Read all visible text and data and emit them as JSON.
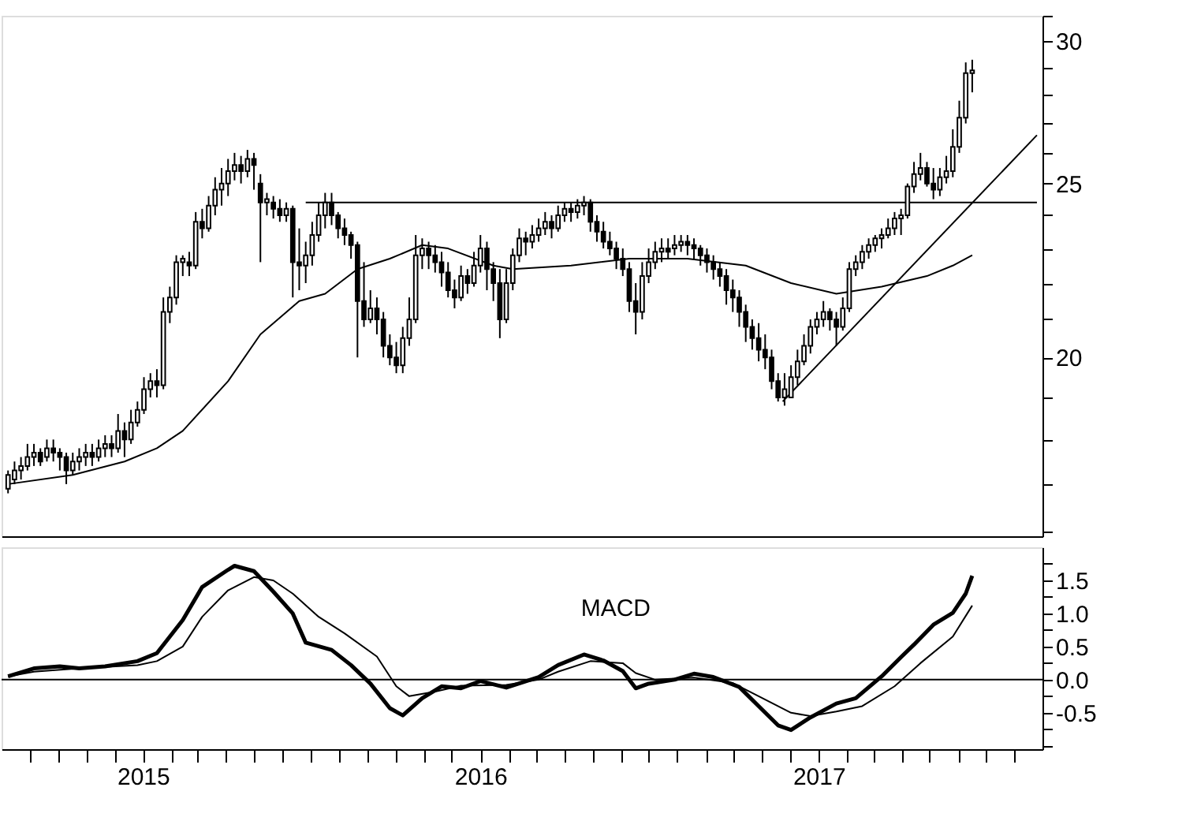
{
  "chart_data": [
    {
      "type": "candlestick",
      "log": "y",
      "tick_labels": "y",
      "xlim": [
        "2014-08-01",
        "2017-08-31"
      ],
      "ylim": [
        15.9,
        31.0
      ],
      "yticks": [
        {
          "value": 16,
          "label": null
        },
        {
          "value": 17,
          "label": null
        },
        {
          "value": 18,
          "label": null
        },
        {
          "value": 19,
          "label": null
        },
        20,
        {
          "value": 21,
          "label": null
        },
        {
          "value": 22,
          "label": null
        },
        {
          "value": 23,
          "label": null
        },
        {
          "value": 24,
          "label": null
        },
        25,
        {
          "value": 26,
          "label": null
        },
        {
          "value": 27,
          "label": null
        },
        {
          "value": 28,
          "label": null
        },
        {
          "value": 29,
          "label": null
        },
        30,
        {
          "value": 31,
          "label": null
        }
      ],
      "color": "#000000",
      "x": [
        "2014-08-08",
        "2014-08-15",
        "2014-08-22",
        "2014-08-29",
        "2014-09-05",
        "2014-09-12",
        "2014-09-19",
        "2014-09-26",
        "2014-10-03",
        "2014-10-10",
        "2014-10-17",
        "2014-10-24",
        "2014-10-31",
        "2014-11-07",
        "2014-11-14",
        "2014-11-21",
        "2014-11-28",
        "2014-12-05",
        "2014-12-12",
        "2014-12-19",
        "2014-12-26",
        "2015-01-02",
        "2015-01-09",
        "2015-01-16",
        "2015-01-23",
        "2015-01-30",
        "2015-02-06",
        "2015-02-13",
        "2015-02-20",
        "2015-02-27",
        "2015-03-06",
        "2015-03-13",
        "2015-03-20",
        "2015-03-27",
        "2015-04-03",
        "2015-04-10",
        "2015-04-17",
        "2015-04-24",
        "2015-05-01",
        "2015-05-08",
        "2015-05-15",
        "2015-05-22",
        "2015-05-29",
        "2015-06-05",
        "2015-06-12",
        "2015-06-19",
        "2015-06-26",
        "2015-07-03",
        "2015-07-10",
        "2015-07-17",
        "2015-07-24",
        "2015-07-31",
        "2015-08-07",
        "2015-08-14",
        "2015-08-21",
        "2015-08-28",
        "2015-09-04",
        "2015-09-11",
        "2015-09-18",
        "2015-09-25",
        "2015-10-02",
        "2015-10-09",
        "2015-10-16",
        "2015-10-23",
        "2015-10-30",
        "2015-11-06",
        "2015-11-13",
        "2015-11-20",
        "2015-11-27",
        "2015-12-04",
        "2015-12-11",
        "2015-12-18",
        "2015-12-25",
        "2016-01-01",
        "2016-01-08",
        "2016-01-15",
        "2016-01-22",
        "2016-01-29",
        "2016-02-05",
        "2016-02-12",
        "2016-02-19",
        "2016-02-26",
        "2016-03-04",
        "2016-03-11",
        "2016-03-18",
        "2016-03-25",
        "2016-04-01",
        "2016-04-08",
        "2016-04-15",
        "2016-04-22",
        "2016-04-29",
        "2016-05-06",
        "2016-05-13",
        "2016-05-20",
        "2016-05-27",
        "2016-06-03",
        "2016-06-10",
        "2016-06-17",
        "2016-06-24",
        "2016-07-01",
        "2016-07-08",
        "2016-07-15",
        "2016-07-22",
        "2016-07-29",
        "2016-08-05",
        "2016-08-12",
        "2016-08-19",
        "2016-08-26",
        "2016-09-02",
        "2016-09-09",
        "2016-09-16",
        "2016-09-23",
        "2016-09-30",
        "2016-10-07",
        "2016-10-14",
        "2016-10-21",
        "2016-10-28",
        "2016-11-04",
        "2016-11-11",
        "2016-11-18",
        "2016-11-25",
        "2016-12-02",
        "2016-12-09",
        "2016-12-16",
        "2016-12-23",
        "2016-12-30",
        "2017-01-06",
        "2017-01-13",
        "2017-01-20",
        "2017-01-27",
        "2017-02-03",
        "2017-02-10",
        "2017-02-17",
        "2017-02-24",
        "2017-03-03",
        "2017-03-10",
        "2017-03-17",
        "2017-03-24",
        "2017-03-31",
        "2017-04-07",
        "2017-04-14",
        "2017-04-21",
        "2017-04-28",
        "2017-05-05",
        "2017-05-12",
        "2017-05-19",
        "2017-05-26",
        "2017-06-02",
        "2017-06-09",
        "2017-06-16"
      ],
      "ohlc": [
        [
          16.9,
          17.3,
          16.8,
          17.2
        ],
        [
          17.1,
          17.5,
          17.0,
          17.3
        ],
        [
          17.3,
          17.6,
          17.1,
          17.4
        ],
        [
          17.4,
          17.9,
          17.3,
          17.6
        ],
        [
          17.6,
          17.9,
          17.4,
          17.7
        ],
        [
          17.7,
          17.8,
          17.4,
          17.5
        ],
        [
          17.6,
          18.0,
          17.5,
          17.8
        ],
        [
          17.8,
          18.0,
          17.5,
          17.7
        ],
        [
          17.7,
          17.8,
          17.3,
          17.6
        ],
        [
          17.6,
          17.7,
          17.0,
          17.3
        ],
        [
          17.3,
          17.7,
          17.2,
          17.5
        ],
        [
          17.5,
          17.8,
          17.3,
          17.6
        ],
        [
          17.6,
          17.9,
          17.4,
          17.7
        ],
        [
          17.7,
          17.9,
          17.4,
          17.6
        ],
        [
          17.6,
          18.0,
          17.5,
          17.8
        ],
        [
          17.8,
          18.1,
          17.6,
          17.9
        ],
        [
          17.9,
          18.1,
          17.6,
          17.8
        ],
        [
          17.8,
          18.6,
          17.7,
          18.2
        ],
        [
          18.2,
          18.4,
          17.6,
          18.0
        ],
        [
          18.0,
          18.7,
          17.9,
          18.4
        ],
        [
          18.4,
          18.9,
          18.3,
          18.7
        ],
        [
          18.7,
          19.5,
          18.6,
          19.2
        ],
        [
          19.2,
          19.6,
          19.0,
          19.4
        ],
        [
          19.4,
          19.7,
          19.0,
          19.3
        ],
        [
          19.3,
          21.6,
          19.2,
          21.2
        ],
        [
          21.2,
          21.9,
          20.9,
          21.6
        ],
        [
          21.6,
          22.8,
          21.4,
          22.6
        ],
        [
          22.6,
          22.8,
          22.2,
          22.7
        ],
        [
          22.6,
          22.9,
          22.2,
          22.5
        ],
        [
          22.5,
          24.1,
          22.4,
          23.8
        ],
        [
          23.8,
          24.2,
          23.3,
          23.6
        ],
        [
          23.6,
          24.6,
          23.5,
          24.3
        ],
        [
          24.3,
          25.2,
          24.0,
          24.8
        ],
        [
          24.8,
          25.5,
          24.3,
          25.0
        ],
        [
          25.0,
          25.8,
          24.6,
          25.4
        ],
        [
          25.4,
          26.0,
          25.1,
          25.6
        ],
        [
          25.6,
          25.9,
          25.0,
          25.4
        ],
        [
          25.4,
          26.1,
          25.2,
          25.8
        ],
        [
          25.8,
          26.0,
          24.8,
          25.6
        ],
        [
          25.0,
          25.3,
          22.6,
          24.4
        ],
        [
          24.4,
          24.7,
          24.0,
          24.5
        ],
        [
          24.4,
          24.6,
          23.9,
          24.2
        ],
        [
          24.2,
          24.5,
          23.8,
          24.0
        ],
        [
          24.0,
          24.4,
          23.8,
          24.2
        ],
        [
          24.2,
          24.3,
          21.6,
          22.6
        ],
        [
          22.6,
          23.6,
          21.8,
          22.5
        ],
        [
          22.5,
          23.2,
          22.0,
          22.8
        ],
        [
          22.8,
          23.8,
          22.5,
          23.4
        ],
        [
          23.4,
          24.4,
          23.2,
          24.0
        ],
        [
          24.0,
          24.7,
          23.6,
          24.4
        ],
        [
          24.4,
          24.7,
          23.7,
          24.0
        ],
        [
          24.0,
          24.1,
          23.3,
          23.6
        ],
        [
          23.6,
          23.9,
          23.1,
          23.4
        ],
        [
          23.4,
          23.5,
          22.7,
          23.1
        ],
        [
          23.1,
          23.2,
          20.0,
          21.5
        ],
        [
          21.5,
          22.6,
          20.8,
          21.0
        ],
        [
          21.0,
          21.8,
          20.9,
          21.3
        ],
        [
          21.3,
          21.6,
          20.6,
          21.0
        ],
        [
          21.0,
          21.2,
          20.0,
          20.3
        ],
        [
          20.3,
          20.6,
          19.8,
          20.0
        ],
        [
          20.0,
          20.4,
          19.6,
          19.8
        ],
        [
          19.8,
          20.8,
          19.6,
          20.5
        ],
        [
          20.5,
          21.6,
          20.3,
          21.0
        ],
        [
          21.0,
          23.4,
          20.9,
          22.8
        ],
        [
          22.8,
          23.3,
          22.4,
          23.0
        ],
        [
          23.0,
          23.2,
          22.4,
          22.8
        ],
        [
          22.8,
          23.1,
          22.3,
          22.6
        ],
        [
          22.6,
          22.9,
          21.9,
          22.3
        ],
        [
          22.3,
          22.6,
          21.6,
          21.8
        ],
        [
          21.8,
          22.1,
          21.3,
          21.6
        ],
        [
          21.6,
          22.5,
          21.5,
          22.2
        ],
        [
          22.2,
          22.4,
          21.7,
          22.0
        ],
        [
          22.0,
          22.9,
          21.9,
          22.5
        ],
        [
          22.5,
          23.4,
          22.3,
          23.0
        ],
        [
          23.0,
          23.2,
          21.8,
          22.4
        ],
        [
          22.4,
          22.6,
          21.5,
          22.0
        ],
        [
          22.0,
          22.4,
          20.5,
          21.0
        ],
        [
          21.0,
          22.4,
          20.9,
          22.0
        ],
        [
          22.0,
          23.0,
          21.8,
          22.8
        ],
        [
          22.8,
          23.6,
          22.6,
          23.3
        ],
        [
          23.3,
          23.5,
          22.8,
          23.2
        ],
        [
          23.2,
          23.7,
          23.0,
          23.4
        ],
        [
          23.4,
          23.9,
          23.2,
          23.6
        ],
        [
          23.6,
          24.1,
          23.4,
          23.8
        ],
        [
          23.8,
          24.0,
          23.3,
          23.6
        ],
        [
          23.6,
          24.3,
          23.5,
          24.0
        ],
        [
          24.0,
          24.4,
          23.8,
          24.2
        ],
        [
          24.2,
          24.4,
          23.8,
          24.1
        ],
        [
          24.1,
          24.5,
          23.9,
          24.3
        ],
        [
          24.3,
          24.6,
          24.0,
          24.4
        ],
        [
          24.4,
          24.5,
          23.5,
          23.8
        ],
        [
          23.8,
          24.0,
          23.2,
          23.5
        ],
        [
          23.5,
          23.8,
          23.0,
          23.2
        ],
        [
          23.2,
          23.5,
          22.8,
          23.0
        ],
        [
          23.0,
          23.2,
          22.4,
          22.7
        ],
        [
          22.7,
          23.0,
          22.2,
          22.4
        ],
        [
          22.4,
          22.6,
          21.2,
          21.5
        ],
        [
          21.5,
          22.0,
          20.6,
          21.2
        ],
        [
          21.2,
          22.6,
          21.0,
          22.2
        ],
        [
          22.2,
          23.0,
          22.0,
          22.6
        ],
        [
          22.6,
          23.2,
          22.4,
          22.9
        ],
        [
          22.9,
          23.3,
          22.6,
          23.0
        ],
        [
          23.0,
          23.3,
          22.7,
          22.9
        ],
        [
          23.0,
          23.4,
          22.8,
          23.1
        ],
        [
          23.1,
          23.4,
          22.9,
          23.2
        ],
        [
          23.2,
          23.4,
          22.8,
          23.1
        ],
        [
          23.1,
          23.3,
          22.7,
          23.0
        ],
        [
          23.0,
          23.1,
          22.5,
          22.8
        ],
        [
          22.8,
          23.0,
          22.3,
          22.6
        ],
        [
          22.6,
          22.8,
          22.1,
          22.4
        ],
        [
          22.4,
          22.6,
          21.9,
          22.2
        ],
        [
          22.2,
          22.4,
          21.4,
          21.8
        ],
        [
          21.8,
          22.1,
          21.2,
          21.6
        ],
        [
          21.6,
          21.8,
          20.8,
          21.2
        ],
        [
          21.2,
          21.4,
          20.4,
          20.8
        ],
        [
          20.8,
          21.0,
          20.2,
          20.5
        ],
        [
          20.5,
          20.9,
          19.9,
          20.2
        ],
        [
          20.2,
          20.6,
          19.7,
          20.0
        ],
        [
          20.0,
          20.2,
          19.2,
          19.4
        ],
        [
          19.4,
          19.6,
          18.9,
          19.0
        ],
        [
          19.0,
          19.6,
          18.8,
          19.2
        ],
        [
          19.0,
          19.8,
          19.0,
          19.5
        ],
        [
          19.5,
          20.2,
          19.3,
          19.9
        ],
        [
          19.9,
          20.6,
          19.8,
          20.3
        ],
        [
          20.3,
          21.0,
          20.1,
          20.8
        ],
        [
          20.8,
          21.2,
          20.6,
          21.0
        ],
        [
          21.0,
          21.5,
          20.8,
          21.2
        ],
        [
          21.2,
          21.3,
          20.7,
          21.0
        ],
        [
          21.0,
          21.2,
          20.3,
          20.8
        ],
        [
          20.8,
          21.6,
          20.7,
          21.3
        ],
        [
          21.3,
          22.6,
          21.2,
          22.4
        ],
        [
          22.4,
          22.8,
          22.2,
          22.6
        ],
        [
          22.6,
          23.1,
          22.4,
          22.9
        ],
        [
          22.9,
          23.3,
          22.7,
          23.1
        ],
        [
          23.1,
          23.4,
          22.9,
          23.3
        ],
        [
          23.3,
          23.6,
          23.0,
          23.4
        ],
        [
          23.4,
          23.9,
          23.3,
          23.6
        ],
        [
          23.6,
          24.1,
          23.4,
          23.9
        ],
        [
          23.9,
          24.2,
          23.4,
          24.0
        ],
        [
          24.0,
          25.0,
          23.9,
          24.9
        ],
        [
          24.9,
          25.7,
          24.7,
          25.3
        ],
        [
          25.3,
          26.0,
          25.1,
          25.5
        ],
        [
          25.5,
          25.7,
          24.9,
          25.0
        ],
        [
          25.0,
          25.5,
          24.5,
          24.8
        ],
        [
          24.8,
          25.5,
          24.6,
          25.2
        ],
        [
          25.2,
          25.9,
          25.0,
          25.4
        ],
        [
          25.4,
          26.8,
          25.2,
          26.2
        ],
        [
          26.2,
          27.8,
          26.0,
          27.2
        ],
        [
          27.2,
          29.2,
          27.0,
          28.8
        ],
        [
          28.8,
          29.3,
          28.1,
          28.9
        ]
      ],
      "series": [
        {
          "type": "line",
          "color": "#000000",
          "x": [
            "2014-08-08",
            "2014-10-17",
            "2014-12-12",
            "2015-01-16",
            "2015-02-13",
            "2015-04-03",
            "2015-05-08",
            "2015-06-19",
            "2015-07-17",
            "2015-08-21",
            "2015-09-25",
            "2015-10-30",
            "2015-11-27",
            "2016-01-15",
            "2016-02-05",
            "2016-04-08",
            "2016-06-10",
            "2016-08-12",
            "2016-10-14",
            "2016-12-02",
            "2017-01-20",
            "2017-03-10",
            "2017-04-28",
            "2017-05-26",
            "2017-06-16"
          ],
          "values": [
            17.0,
            17.2,
            17.5,
            17.8,
            18.2,
            19.4,
            20.6,
            21.5,
            21.7,
            22.4,
            22.7,
            23.1,
            23.0,
            22.5,
            22.4,
            22.5,
            22.7,
            22.7,
            22.5,
            22.0,
            21.7,
            21.9,
            22.2,
            22.5,
            22.8
          ]
        },
        {
          "type": "line",
          "color": "#000000",
          "x": [
            "2015-06-26",
            "2017-08-25"
          ],
          "values": [
            24.4,
            24.4
          ]
        },
        {
          "type": "line",
          "color": "#000000",
          "x": [
            "2016-11-23",
            "2017-08-25"
          ],
          "values": [
            18.9,
            26.6
          ]
        }
      ]
    },
    {
      "type": "line",
      "xlim": [
        "2014-08-01",
        "2017-08-31"
      ],
      "ylim": [
        -1.05,
        2.0
      ],
      "yticks": [
        {
          "value": -1.0,
          "label": null
        },
        {
          "value": -0.75,
          "label": null
        },
        -0.5,
        {
          "value": -0.25,
          "label": null
        },
        {
          "value": 0,
          "label": "0.0"
        },
        {
          "value": 0.25,
          "label": null
        },
        0.5,
        {
          "value": 0.75,
          "label": null
        },
        {
          "value": 1,
          "label": "1.0"
        },
        {
          "value": 1.25,
          "label": null
        },
        1.5,
        {
          "value": 1.75,
          "label": null
        }
      ],
      "xticks": [
        {
          "value": "2014-09-01",
          "label": null
        },
        {
          "value": "2014-10-01",
          "label": null
        },
        {
          "value": "2014-11-01",
          "label": null
        },
        {
          "value": "2014-12-01",
          "label": null
        },
        {
          "value": "2015-01-01",
          "label": "2015"
        },
        {
          "value": "2015-02-01",
          "label": null
        },
        {
          "value": "2015-03-01",
          "label": null
        },
        {
          "value": "2015-04-01",
          "label": null
        },
        {
          "value": "2015-05-01",
          "label": null
        },
        {
          "value": "2015-06-01",
          "label": null
        },
        {
          "value": "2015-07-01",
          "label": null
        },
        {
          "value": "2015-08-01",
          "label": null
        },
        {
          "value": "2015-09-01",
          "label": null
        },
        {
          "value": "2015-10-01",
          "label": null
        },
        {
          "value": "2015-11-01",
          "label": null
        },
        {
          "value": "2015-12-01",
          "label": null
        },
        {
          "value": "2016-01-01",
          "label": "2016"
        },
        {
          "value": "2016-02-01",
          "label": null
        },
        {
          "value": "2016-03-01",
          "label": null
        },
        {
          "value": "2016-04-01",
          "label": null
        },
        {
          "value": "2016-05-01",
          "label": null
        },
        {
          "value": "2016-06-01",
          "label": null
        },
        {
          "value": "2016-07-01",
          "label": null
        },
        {
          "value": "2016-08-01",
          "label": null
        },
        {
          "value": "2016-09-01",
          "label": null
        },
        {
          "value": "2016-10-01",
          "label": null
        },
        {
          "value": "2016-11-01",
          "label": null
        },
        {
          "value": "2016-12-01",
          "label": null
        },
        {
          "value": "2017-01-01",
          "label": "2017"
        },
        {
          "value": "2017-02-01",
          "label": null
        },
        {
          "value": "2017-03-01",
          "label": null
        },
        {
          "value": "2017-04-01",
          "label": null
        },
        {
          "value": "2017-05-01",
          "label": null
        },
        {
          "value": "2017-06-01",
          "label": null
        },
        {
          "value": "2017-07-01",
          "label": null
        },
        {
          "value": "2017-08-01",
          "label": null
        }
      ],
      "ref_lines": [
        {
          "axis": "y",
          "value": 0,
          "color": "#000000"
        }
      ],
      "annotations": [
        "MACD"
      ],
      "series": [
        {
          "color": "#000000",
          "x": [
            "2014-08-08",
            "2014-09-05",
            "2014-10-03",
            "2014-10-24",
            "2014-11-21",
            "2014-12-26",
            "2015-01-16",
            "2015-02-13",
            "2015-03-06",
            "2015-04-03",
            "2015-04-10",
            "2015-05-01",
            "2015-05-22",
            "2015-06-12",
            "2015-06-26",
            "2015-07-24",
            "2015-08-14",
            "2015-09-04",
            "2015-09-25",
            "2015-10-09",
            "2015-10-30",
            "2015-11-20",
            "2015-12-11",
            "2016-01-01",
            "2016-01-29",
            "2016-03-04",
            "2016-03-25",
            "2016-04-22",
            "2016-05-13",
            "2016-06-03",
            "2016-06-17",
            "2016-07-01",
            "2016-07-29",
            "2016-08-19",
            "2016-09-09",
            "2016-10-07",
            "2016-10-28",
            "2016-11-18",
            "2016-12-02",
            "2016-12-23",
            "2017-01-20",
            "2017-02-10",
            "2017-03-10",
            "2017-03-31",
            "2017-04-14",
            "2017-05-05",
            "2017-05-26",
            "2017-06-09",
            "2017-06-16"
          ],
          "values": [
            0.05,
            0.17,
            0.2,
            0.17,
            0.2,
            0.28,
            0.4,
            0.9,
            1.4,
            1.66,
            1.72,
            1.64,
            1.33,
            1.0,
            0.56,
            0.45,
            0.22,
            -0.06,
            -0.43,
            -0.54,
            -0.28,
            -0.1,
            -0.13,
            -0.02,
            -0.12,
            0.04,
            0.22,
            0.38,
            0.29,
            0.13,
            -0.13,
            -0.06,
            0.0,
            0.09,
            0.04,
            -0.11,
            -0.4,
            -0.69,
            -0.76,
            -0.57,
            -0.36,
            -0.28,
            0.05,
            0.34,
            0.53,
            0.83,
            1.01,
            1.3,
            1.57
          ]
        },
        {
          "color": "#000000",
          "x": [
            "2014-08-08",
            "2014-09-05",
            "2014-10-24",
            "2014-12-26",
            "2015-01-16",
            "2015-02-13",
            "2015-03-06",
            "2015-04-03",
            "2015-05-01",
            "2015-05-22",
            "2015-06-12",
            "2015-07-10",
            "2015-08-07",
            "2015-09-11",
            "2015-10-02",
            "2015-10-16",
            "2015-11-13",
            "2015-12-11",
            "2016-01-29",
            "2016-03-04",
            "2016-03-25",
            "2016-04-29",
            "2016-06-03",
            "2016-06-17",
            "2016-07-08",
            "2016-08-19",
            "2016-09-30",
            "2016-10-28",
            "2016-12-02",
            "2016-12-23",
            "2017-01-20",
            "2017-02-17",
            "2017-03-24",
            "2017-04-21",
            "2017-05-26",
            "2017-06-16"
          ],
          "values": [
            0.05,
            0.12,
            0.17,
            0.22,
            0.28,
            0.5,
            0.95,
            1.35,
            1.55,
            1.5,
            1.3,
            0.95,
            0.7,
            0.35,
            -0.1,
            -0.25,
            -0.18,
            -0.09,
            -0.08,
            0.0,
            0.12,
            0.28,
            0.25,
            0.1,
            0.0,
            0.03,
            -0.05,
            -0.25,
            -0.5,
            -0.55,
            -0.48,
            -0.4,
            -0.1,
            0.25,
            0.65,
            1.12
          ]
        }
      ]
    }
  ]
}
